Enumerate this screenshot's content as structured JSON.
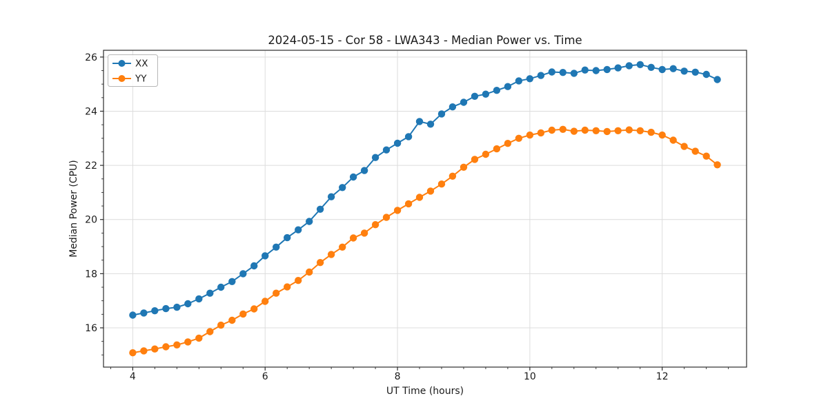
{
  "figure": {
    "background": "#ffffff"
  },
  "chart_data": {
    "type": "line",
    "title": "2024-05-15 - Cor 58 - LWA343 - Median Power vs. Time",
    "xlabel": "UT Time (hours)",
    "ylabel": "Median Power (CPU)",
    "xlim": [
      3.558,
      13.275
    ],
    "ylim": [
      14.55,
      26.25
    ],
    "xticks": [
      4,
      6,
      8,
      10,
      12
    ],
    "yticks": [
      16,
      18,
      20,
      22,
      24,
      26
    ],
    "x_minor_step": 0.33333,
    "y_minor_step": 0.5,
    "grid": true,
    "grid_color": "#dcdcdc",
    "spine_color": "#2b2b2b",
    "tick_color": "#2b2b2b",
    "legend_position": "upper left",
    "x": [
      4.0,
      4.167,
      4.333,
      4.5,
      4.667,
      4.833,
      5.0,
      5.167,
      5.333,
      5.5,
      5.667,
      5.833,
      6.0,
      6.167,
      6.333,
      6.5,
      6.667,
      6.833,
      7.0,
      7.167,
      7.333,
      7.5,
      7.667,
      7.833,
      8.0,
      8.167,
      8.333,
      8.5,
      8.667,
      8.833,
      9.0,
      9.167,
      9.333,
      9.5,
      9.667,
      9.833,
      10.0,
      10.167,
      10.333,
      10.5,
      10.667,
      10.833,
      11.0,
      11.167,
      11.333,
      11.5,
      11.667,
      11.833,
      12.0,
      12.167,
      12.333,
      12.5,
      12.667,
      12.833
    ],
    "series": [
      {
        "name": "XX",
        "color": "#1f77b4",
        "values": [
          16.47,
          16.55,
          16.63,
          16.71,
          16.76,
          16.89,
          17.07,
          17.28,
          17.5,
          17.71,
          18.0,
          18.29,
          18.66,
          18.98,
          19.33,
          19.62,
          19.93,
          20.38,
          20.84,
          21.18,
          21.57,
          21.81,
          22.29,
          22.57,
          22.82,
          23.06,
          23.62,
          23.52,
          23.9,
          24.16,
          24.33,
          24.55,
          24.63,
          24.77,
          24.91,
          25.12,
          25.2,
          25.32,
          25.45,
          25.43,
          25.4,
          25.52,
          25.5,
          25.54,
          25.6,
          25.68,
          25.72,
          25.62,
          25.54,
          25.57,
          25.48,
          25.44,
          25.36,
          25.17
        ]
      },
      {
        "name": "YY",
        "color": "#ff7f0e",
        "values": [
          15.08,
          15.15,
          15.22,
          15.3,
          15.37,
          15.48,
          15.62,
          15.86,
          16.1,
          16.28,
          16.51,
          16.7,
          16.98,
          17.28,
          17.51,
          17.75,
          18.06,
          18.41,
          18.71,
          18.98,
          19.32,
          19.5,
          19.81,
          20.08,
          20.34,
          20.58,
          20.82,
          21.05,
          21.31,
          21.6,
          21.93,
          22.22,
          22.41,
          22.61,
          22.81,
          23.0,
          23.12,
          23.2,
          23.3,
          23.33,
          23.26,
          23.3,
          23.28,
          23.25,
          23.28,
          23.31,
          23.28,
          23.22,
          23.12,
          22.93,
          22.7,
          22.52,
          22.34,
          22.02
        ]
      }
    ]
  }
}
